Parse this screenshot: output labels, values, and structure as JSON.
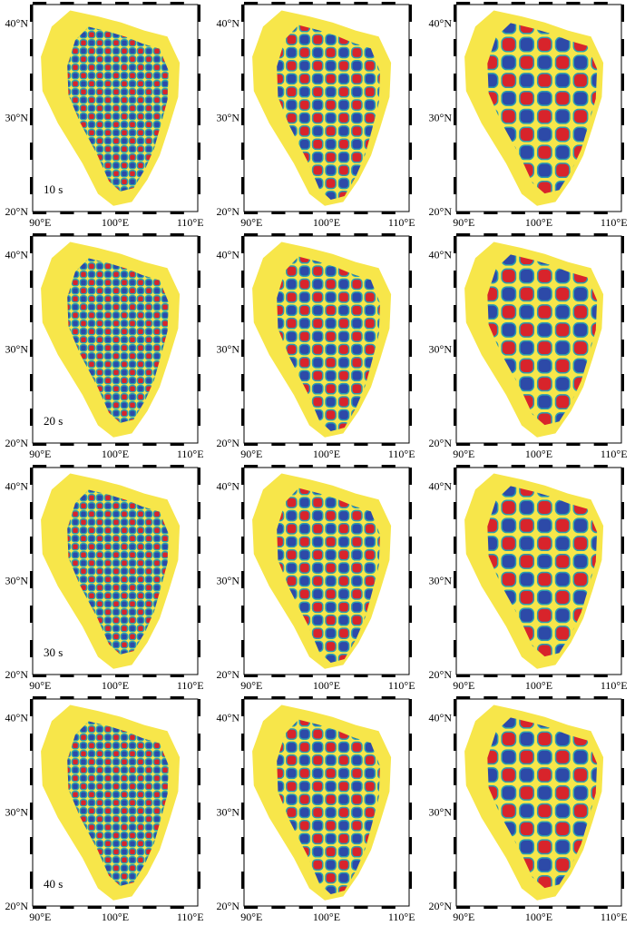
{
  "rows": [
    {
      "period_label": "10 s",
      "spacings": [
        1.0,
        1.6,
        2.2
      ]
    },
    {
      "period_label": "20 s",
      "spacings": [
        1.0,
        1.6,
        2.2
      ]
    },
    {
      "period_label": "30 s",
      "spacings": [
        1.0,
        1.6,
        2.2
      ]
    },
    {
      "period_label": "40 s",
      "spacings": [
        1.0,
        1.6,
        2.2
      ]
    }
  ],
  "axes": {
    "lon_ticks": [
      "90°E",
      "100°E",
      "110°E"
    ],
    "lat_ticks": [
      "40°N",
      "30°N",
      "20°N"
    ],
    "lon_range": [
      89,
      111
    ],
    "lat_range": [
      20,
      42
    ]
  },
  "palette": {
    "background": "#f7e64a",
    "positive": "#d8242b",
    "negative": "#2d4aa8",
    "transition": "#2a9db0",
    "frame": "#000000"
  },
  "icons": [
    "checkerboard-pattern",
    "study-region-outline"
  ]
}
